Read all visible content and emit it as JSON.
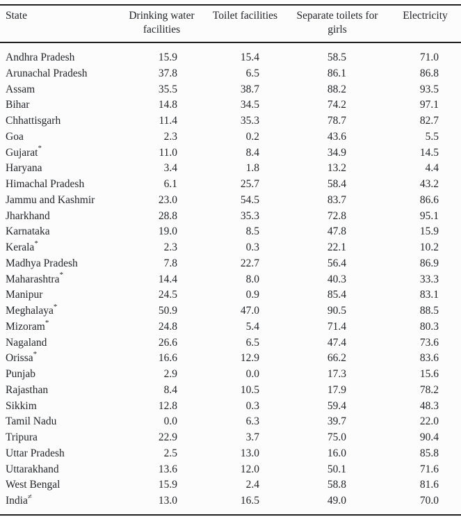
{
  "table": {
    "columns": [
      "State",
      "Drinking water facilities",
      "Toilet facilities",
      "Separate toilets for girls",
      "Electricity"
    ],
    "rows": [
      {
        "state": "Andhra Pradesh",
        "marker": "",
        "values": [
          "15.9",
          "15.4",
          "58.5",
          "71.0"
        ]
      },
      {
        "state": "Arunachal Pradesh",
        "marker": "",
        "values": [
          "37.8",
          "6.5",
          "86.1",
          "86.8"
        ]
      },
      {
        "state": "Assam",
        "marker": "",
        "values": [
          "35.5",
          "38.7",
          "88.2",
          "93.5"
        ]
      },
      {
        "state": "Bihar",
        "marker": "",
        "values": [
          "14.8",
          "34.5",
          "74.2",
          "97.1"
        ]
      },
      {
        "state": "Chhattisgarh",
        "marker": "",
        "values": [
          "11.4",
          "35.3",
          "78.7",
          "82.7"
        ]
      },
      {
        "state": "Goa",
        "marker": "",
        "values": [
          "2.3",
          "0.2",
          "43.6",
          "5.5"
        ]
      },
      {
        "state": "Gujarat",
        "marker": "*",
        "values": [
          "11.0",
          "8.4",
          "34.9",
          "14.5"
        ]
      },
      {
        "state": "Haryana",
        "marker": "",
        "values": [
          "3.4",
          "1.8",
          "13.2",
          "4.4"
        ]
      },
      {
        "state": "Himachal Pradesh",
        "marker": "",
        "values": [
          "6.1",
          "25.7",
          "58.4",
          "43.2"
        ]
      },
      {
        "state": "Jammu and Kashmir",
        "marker": "",
        "values": [
          "23.0",
          "54.5",
          "83.7",
          "86.6"
        ]
      },
      {
        "state": "Jharkhand",
        "marker": "",
        "values": [
          "28.8",
          "35.3",
          "72.8",
          "95.1"
        ]
      },
      {
        "state": "Karnataka",
        "marker": "",
        "values": [
          "19.0",
          "8.5",
          "47.8",
          "15.9"
        ]
      },
      {
        "state": "Kerala",
        "marker": "*",
        "values": [
          "2.3",
          "0.3",
          "22.1",
          "10.2"
        ]
      },
      {
        "state": "Madhya Pradesh",
        "marker": "",
        "values": [
          "7.8",
          "22.7",
          "56.4",
          "86.9"
        ]
      },
      {
        "state": "Maharashtra",
        "marker": "*",
        "values": [
          "14.4",
          "8.0",
          "40.3",
          "33.3"
        ]
      },
      {
        "state": "Manipur",
        "marker": "",
        "values": [
          "24.5",
          "0.9",
          "85.4",
          "83.1"
        ]
      },
      {
        "state": "Meghalaya",
        "marker": "*",
        "values": [
          "50.9",
          "47.0",
          "90.5",
          "88.5"
        ]
      },
      {
        "state": "Mizoram",
        "marker": "*",
        "values": [
          "24.8",
          "5.4",
          "71.4",
          "80.3"
        ]
      },
      {
        "state": "Nagaland",
        "marker": "",
        "values": [
          "26.6",
          "6.5",
          "47.4",
          "73.6"
        ]
      },
      {
        "state": "Orissa",
        "marker": "*",
        "values": [
          "16.6",
          "12.9",
          "66.2",
          "83.6"
        ]
      },
      {
        "state": "Punjab",
        "marker": "",
        "values": [
          "2.9",
          "0.0",
          "17.3",
          "15.6"
        ]
      },
      {
        "state": "Rajasthan",
        "marker": "",
        "values": [
          "8.4",
          "10.5",
          "17.9",
          "78.2"
        ]
      },
      {
        "state": "Sikkim",
        "marker": "",
        "values": [
          "12.8",
          "0.3",
          "59.4",
          "48.3"
        ]
      },
      {
        "state": "Tamil Nadu",
        "marker": "",
        "values": [
          "0.0",
          "6.3",
          "39.7",
          "22.0"
        ]
      },
      {
        "state": "Tripura",
        "marker": "",
        "values": [
          "22.9",
          "3.7",
          "75.0",
          "90.4"
        ]
      },
      {
        "state": "Uttar Pradesh",
        "marker": "",
        "values": [
          "2.5",
          "13.0",
          "16.0",
          "85.8"
        ]
      },
      {
        "state": "Uttarakhand",
        "marker": "",
        "values": [
          "13.6",
          "12.0",
          "50.1",
          "71.6"
        ]
      },
      {
        "state": "West Bengal",
        "marker": "",
        "values": [
          "15.9",
          "2.4",
          "58.8",
          "81.6"
        ]
      },
      {
        "state": "India",
        "marker": "≠",
        "values": [
          "13.0",
          "16.5",
          "49.0",
          "70.0"
        ]
      }
    ]
  }
}
